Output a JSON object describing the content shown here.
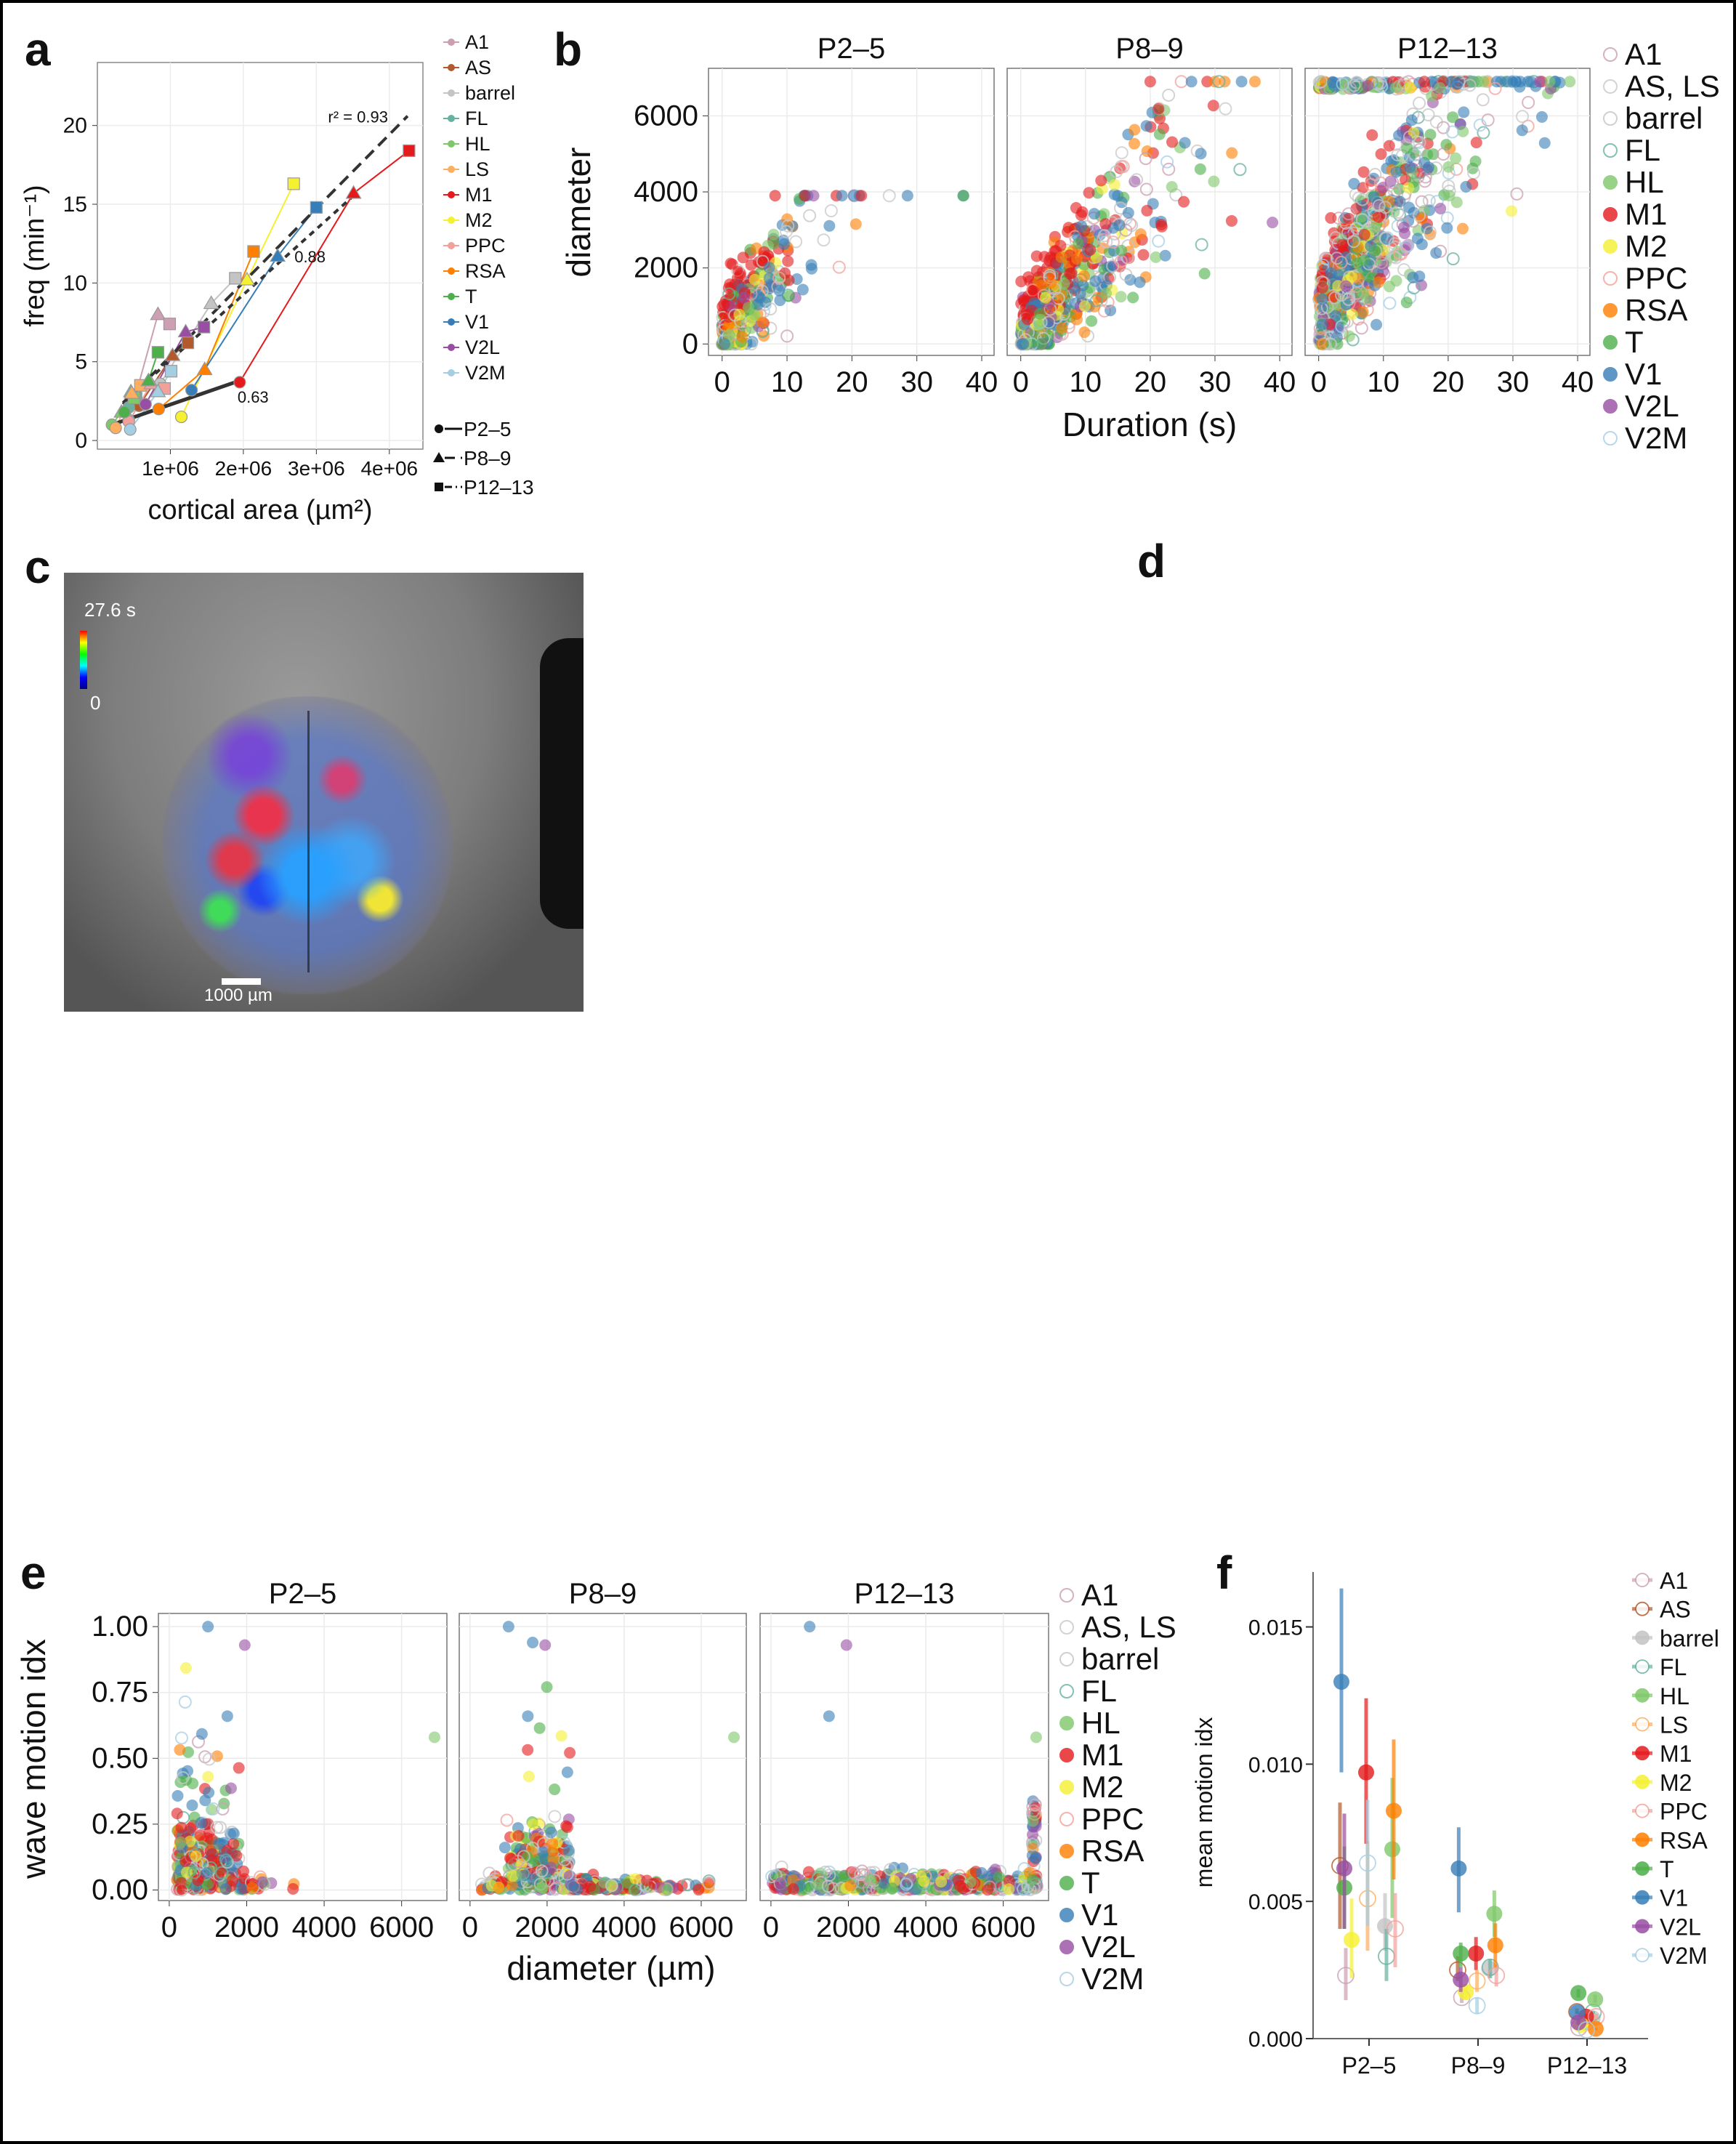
{
  "panel_labels": {
    "a": "a",
    "b": "b",
    "c": "c",
    "d": "d",
    "e": "e",
    "f": "f"
  },
  "colors": {
    "A1": "#cc9fb2",
    "AS": "#b35a2d",
    "barrel": "#c4c4c4",
    "FL": "#66b2a0",
    "HL": "#7fc86a",
    "LS": "#fdae61",
    "M1": "#e41a1c",
    "M2": "#f5f030",
    "PPC": "#f4a09a",
    "RSA": "#ff7f00",
    "T": "#4daf4a",
    "V1": "#377eb8",
    "V2L": "#984ea3",
    "V2M": "#a6cee3",
    "AS, LS": "#c8c8c8"
  },
  "panel_c": {
    "colorbar_max": "27.6 s",
    "colorbar_min": "0",
    "scalebar_label": "1000 µm"
  },
  "chart_data": [
    {
      "id": "a",
      "type": "line",
      "xlabel": "cortical area (µm²)",
      "ylabel": "freq (min⁻¹)",
      "xlim": [
        0,
        4460000
      ],
      "ylim": [
        -0.55,
        24
      ],
      "xticks": [
        1000000,
        2000000,
        3000000,
        4000000
      ],
      "xtick_labels": [
        "1e+06",
        "2e+06",
        "3e+06",
        "4e+06"
      ],
      "yticks": [
        0,
        5,
        10,
        15,
        20
      ],
      "ytick_labels": [
        "0",
        "5",
        "10",
        "15",
        "20"
      ],
      "grid": true,
      "legend_ages": [
        {
          "label": "P2–5",
          "marker": "circle",
          "line": "solid"
        },
        {
          "label": "P8–9",
          "marker": "triangle",
          "line": "dashed"
        },
        {
          "label": "P12–13",
          "marker": "square",
          "line": "dotdash"
        }
      ],
      "series": [
        {
          "name": "A1",
          "values": [
            [
              430000,
              1.3
            ],
            [
              830000,
              8.0
            ],
            [
              990000,
              7.4
            ]
          ]
        },
        {
          "name": "AS",
          "values": [
            [
              570000,
              2.2
            ],
            [
              1030000,
              5.4
            ],
            [
              1240000,
              6.2
            ]
          ]
        },
        {
          "name": "barrel",
          "values": [
            [
              860000,
              3.6
            ],
            [
              1560000,
              8.7
            ],
            [
              1890000,
              10.3
            ]
          ]
        },
        {
          "name": "FL",
          "values": [
            [
              430000,
              2.1
            ],
            [
              460000,
              3.1
            ],
            [
              530000,
              2.7
            ]
          ]
        },
        {
          "name": "HL",
          "values": [
            [
              200000,
              1.0
            ],
            [
              330000,
              1.8
            ],
            [
              500000,
              2.7
            ]
          ]
        },
        {
          "name": "LS",
          "values": [
            [
              250000,
              0.8
            ],
            [
              470000,
              3.0
            ],
            [
              590000,
              3.5
            ]
          ]
        },
        {
          "name": "M1",
          "values": [
            [
              1950000,
              3.7
            ],
            [
              3510000,
              15.7
            ],
            [
              4270000,
              18.4
            ]
          ]
        },
        {
          "name": "M2",
          "values": [
            [
              1150000,
              1.5
            ],
            [
              2050000,
              10.2
            ],
            [
              2690000,
              16.3
            ]
          ]
        },
        {
          "name": "PPC",
          "values": [
            [
              430000,
              1.2
            ],
            [
              740000,
              3.6
            ],
            [
              920000,
              3.3
            ]
          ]
        },
        {
          "name": "RSA",
          "values": [
            [
              840000,
              2.0
            ],
            [
              1470000,
              4.5
            ],
            [
              2140000,
              12.0
            ]
          ]
        },
        {
          "name": "T",
          "values": [
            [
              370000,
              1.8
            ],
            [
              700000,
              3.8
            ],
            [
              830000,
              5.6
            ]
          ]
        },
        {
          "name": "V1",
          "values": [
            [
              1290000,
              3.2
            ],
            [
              2470000,
              11.7
            ],
            [
              3000000,
              14.8
            ]
          ]
        },
        {
          "name": "V2L",
          "values": [
            [
              660000,
              2.3
            ],
            [
              1210000,
              6.9
            ],
            [
              1460000,
              7.2
            ]
          ]
        },
        {
          "name": "V2M",
          "values": [
            [
              450000,
              0.7
            ],
            [
              830000,
              3.1
            ],
            [
              1010000,
              4.4
            ]
          ]
        }
      ],
      "fits": [
        {
          "age": "P2–5",
          "label": "0.63",
          "from": [
            200000,
            1.0
          ],
          "to": [
            1950000,
            3.8
          ]
        },
        {
          "age": "P8–9",
          "label": "0.88",
          "from": [
            350000,
            2.4
          ],
          "to": [
            3500000,
            15.5
          ]
        },
        {
          "age": "P12–13",
          "label": "r² = 0.93",
          "from": [
            350000,
            2.3
          ],
          "to": [
            4250000,
            20.6
          ]
        }
      ]
    },
    {
      "id": "b",
      "type": "scatter",
      "facets": [
        "P2–5",
        "P8–9",
        "P12–13"
      ],
      "xlabel": "Duration (s)",
      "ylabel": "diameter",
      "xlim": [
        -2.1,
        41.9
      ],
      "ylim": [
        -300,
        7250
      ],
      "xticks": [
        0,
        10,
        20,
        30,
        40
      ],
      "yticks": [
        0,
        2000,
        4000,
        6000
      ],
      "grid": true,
      "legend": "right",
      "legend_entries": [
        {
          "name": "A1",
          "open": true
        },
        {
          "name": "AS, LS",
          "open": true
        },
        {
          "name": "barrel",
          "open": true
        },
        {
          "name": "FL",
          "open": true
        },
        {
          "name": "HL",
          "open": false
        },
        {
          "name": "M1",
          "open": false
        },
        {
          "name": "M2",
          "open": false
        },
        {
          "name": "PPC",
          "open": true
        },
        {
          "name": "RSA",
          "open": false
        },
        {
          "name": "T",
          "open": false
        },
        {
          "name": "V1",
          "open": false
        },
        {
          "name": "V2L",
          "open": false
        },
        {
          "name": "V2M",
          "open": true
        }
      ]
    },
    {
      "id": "e",
      "type": "scatter",
      "facets": [
        "P2–5",
        "P8–9",
        "P12–13"
      ],
      "xlabel": "diameter (µm)",
      "ylabel": "wave motion idx",
      "xlim": [
        -280,
        7170
      ],
      "ylim": [
        -0.04,
        1.05
      ],
      "xticks": [
        0,
        2000,
        4000,
        6000
      ],
      "yticks": [
        0,
        0.25,
        0.5,
        0.75,
        1.0
      ],
      "ytick_labels": [
        "0.00",
        "0.25",
        "0.50",
        "0.75",
        "1.00"
      ],
      "grid": true,
      "legend": "right",
      "legend_entries": [
        {
          "name": "A1",
          "open": true
        },
        {
          "name": "AS, LS",
          "open": true
        },
        {
          "name": "barrel",
          "open": true
        },
        {
          "name": "FL",
          "open": true
        },
        {
          "name": "HL",
          "open": false
        },
        {
          "name": "M1",
          "open": false
        },
        {
          "name": "M2",
          "open": false
        },
        {
          "name": "PPC",
          "open": true
        },
        {
          "name": "RSA",
          "open": false
        },
        {
          "name": "T",
          "open": false
        },
        {
          "name": "V1",
          "open": false
        },
        {
          "name": "V2L",
          "open": false
        },
        {
          "name": "V2M",
          "open": true
        }
      ]
    },
    {
      "id": "f",
      "type": "scatter",
      "categories": [
        "P2–5",
        "P8–9",
        "P12–13"
      ],
      "ylabel": "mean motion idx",
      "xlabel": "",
      "ylim": [
        0,
        0.017
      ],
      "yticks": [
        0,
        0.005,
        0.01,
        0.015
      ],
      "ytick_labels": [
        "0.000",
        "0.005",
        "0.010",
        "0.015"
      ],
      "grid": false,
      "legend": "right",
      "series": [
        {
          "name": "A1",
          "open": true,
          "values": [
            [
              0.0023,
              0.0014,
              0.0033
            ],
            [
              0.0015,
              0.0013,
              0.0017
            ],
            [
              0.0004,
              0.0003,
              0.0005
            ]
          ]
        },
        {
          "name": "AS",
          "open": true,
          "values": [
            [
              0.0063,
              0.004,
              0.0086
            ],
            [
              0.0025,
              0.0021,
              0.003
            ],
            [
              0.00098,
              0.0009,
              0.0011
            ]
          ]
        },
        {
          "name": "barrel",
          "open": false,
          "values": [
            [
              0.0041,
              0.0032,
              0.0053
            ],
            [
              0.00255,
              0.0022,
              0.0029
            ],
            [
              0.00074,
              0.0006,
              0.0009
            ]
          ]
        },
        {
          "name": "FL",
          "open": true,
          "values": [
            [
              0.003,
              0.0021,
              0.004
            ],
            [
              0.0026,
              0.0022,
              0.0029
            ],
            [
              0.00096,
              0.0009,
              0.001
            ]
          ]
        },
        {
          "name": "HL",
          "open": false,
          "values": [
            [
              0.0069,
              0.0044,
              0.0095
            ],
            [
              0.00455,
              0.0037,
              0.0054
            ],
            [
              0.00143,
              0.0013,
              0.0016
            ]
          ]
        },
        {
          "name": "LS",
          "open": true,
          "values": [
            [
              0.0051,
              0.0032,
              0.0072
            ],
            [
              0.0021,
              0.0017,
              0.0025
            ],
            [
              0.0006,
              0.0005,
              0.0007
            ]
          ]
        },
        {
          "name": "M1",
          "open": false,
          "values": [
            [
              0.0097,
              0.0071,
              0.0124
            ],
            [
              0.0031,
              0.0025,
              0.0037
            ],
            [
              0.0008,
              0.0007,
              0.0009
            ]
          ]
        },
        {
          "name": "M2",
          "open": false,
          "values": [
            [
              0.0036,
              0.0022,
              0.0051
            ],
            [
              0.0017,
              0.0014,
              0.002
            ],
            [
              0.0005,
              0.0004,
              0.0006
            ]
          ]
        },
        {
          "name": "PPC",
          "open": true,
          "values": [
            [
              0.004,
              0.0026,
              0.0053
            ],
            [
              0.0023,
              0.0019,
              0.0027
            ],
            [
              0.0008,
              0.0007,
              0.0009
            ]
          ]
        },
        {
          "name": "RSA",
          "open": false,
          "values": [
            [
              0.0083,
              0.0058,
              0.0109
            ],
            [
              0.0034,
              0.0026,
              0.0042
            ],
            [
              0.00036,
              0.0003,
              0.0004
            ]
          ]
        },
        {
          "name": "T",
          "open": false,
          "values": [
            [
              0.0055,
              0.004,
              0.007
            ],
            [
              0.0031,
              0.0026,
              0.0035
            ],
            [
              0.00166,
              0.0015,
              0.0018
            ]
          ]
        },
        {
          "name": "V1",
          "open": false,
          "values": [
            [
              0.013,
              0.0097,
              0.0164
            ],
            [
              0.0062,
              0.0046,
              0.0077
            ],
            [
              0.00096,
              0.0009,
              0.001
            ]
          ]
        },
        {
          "name": "V2L",
          "open": false,
          "values": [
            [
              0.0062,
              0.004,
              0.0082
            ],
            [
              0.00215,
              0.0017,
              0.0026
            ],
            [
              0.00059,
              0.0005,
              0.0007
            ]
          ]
        },
        {
          "name": "V2M",
          "open": true,
          "values": [
            [
              0.0064,
              0.0041,
              0.0087
            ],
            [
              0.0012,
              0.0009,
              0.0015
            ],
            [
              0.00032,
              0.0003,
              0.0004
            ]
          ]
        }
      ]
    }
  ]
}
